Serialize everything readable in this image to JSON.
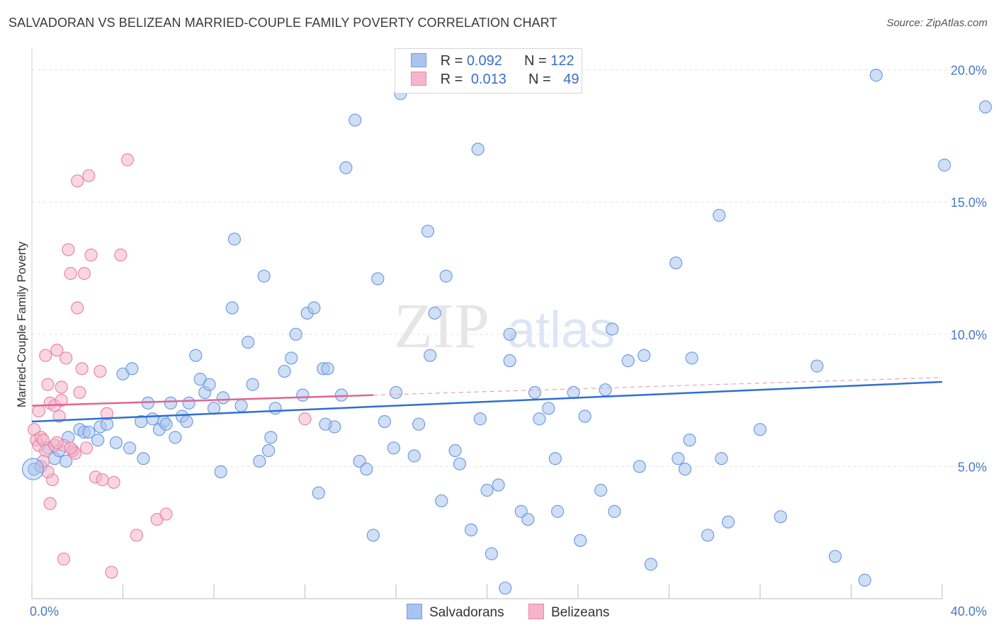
{
  "header": {
    "title": "SALVADORAN VS BELIZEAN MARRIED-COUPLE FAMILY POVERTY CORRELATION CHART",
    "source": "Source: ZipAtlas.com"
  },
  "watermark": {
    "part1": "ZIP",
    "part2": "atlas"
  },
  "legend": {
    "rows": [
      {
        "r_label": "R =",
        "r_value": "0.092",
        "n_label": "N =",
        "n_value": "122",
        "color": "#a9c4ee"
      },
      {
        "r_label": "R =",
        "r_value": "0.013",
        "n_label": "N =",
        "n_value": "49",
        "color": "#f6b5cb"
      }
    ]
  },
  "bottom_legend": {
    "items": [
      {
        "label": "Salvadorans",
        "color": "#a9c4ee"
      },
      {
        "label": "Belizeans",
        "color": "#f6b5cb"
      }
    ]
  },
  "chart_data": {
    "type": "scatter",
    "title": "SALVADORAN VS BELIZEAN MARRIED-COUPLE FAMILY POVERTY CORRELATION CHART",
    "ylabel": "Married-Couple Family Poverty",
    "xlabel": "",
    "xlim": [
      0,
      40
    ],
    "ylim": [
      0,
      20.5
    ],
    "x_tick_labels": [
      {
        "value": 0,
        "label": "0.0%"
      },
      {
        "value": 40,
        "label": "40.0%"
      }
    ],
    "y_tick_labels": [
      {
        "value": 5,
        "label": "5.0%"
      },
      {
        "value": 10,
        "label": "10.0%"
      },
      {
        "value": 15,
        "label": "15.0%"
      },
      {
        "value": 20,
        "label": "20.0%"
      }
    ],
    "grid": "horizontal dashed",
    "legend_position": "top-center",
    "series": [
      {
        "name": "Salvadorans",
        "color": "#6f9de0",
        "fill": "#a9c4ee",
        "trend": {
          "x": [
            0,
            40
          ],
          "y": [
            6.7,
            8.2
          ]
        },
        "points": [
          [
            0.1,
            4.9
          ],
          [
            0.4,
            5.0
          ],
          [
            0.7,
            5.7
          ],
          [
            1.0,
            5.3
          ],
          [
            1.2,
            5.6
          ],
          [
            1.5,
            5.2
          ],
          [
            1.6,
            6.1
          ],
          [
            1.8,
            5.6
          ],
          [
            2.1,
            6.4
          ],
          [
            2.3,
            6.3
          ],
          [
            2.5,
            6.3
          ],
          [
            2.9,
            6.0
          ],
          [
            3.0,
            6.5
          ],
          [
            3.3,
            6.6
          ],
          [
            3.7,
            5.9
          ],
          [
            4.0,
            8.5
          ],
          [
            4.3,
            5.7
          ],
          [
            4.4,
            8.7
          ],
          [
            4.8,
            6.7
          ],
          [
            4.9,
            5.3
          ],
          [
            5.1,
            7.4
          ],
          [
            5.3,
            6.8
          ],
          [
            5.6,
            6.4
          ],
          [
            5.8,
            6.7
          ],
          [
            5.9,
            6.6
          ],
          [
            6.1,
            7.4
          ],
          [
            6.3,
            6.1
          ],
          [
            6.6,
            6.9
          ],
          [
            6.8,
            6.7
          ],
          [
            6.9,
            7.4
          ],
          [
            7.2,
            9.2
          ],
          [
            7.4,
            8.3
          ],
          [
            7.6,
            7.8
          ],
          [
            7.8,
            8.1
          ],
          [
            8.0,
            7.2
          ],
          [
            8.3,
            4.8
          ],
          [
            8.4,
            7.6
          ],
          [
            8.8,
            11.0
          ],
          [
            8.9,
            13.6
          ],
          [
            9.2,
            7.3
          ],
          [
            9.5,
            9.7
          ],
          [
            9.7,
            8.1
          ],
          [
            10.0,
            5.2
          ],
          [
            10.2,
            12.2
          ],
          [
            10.4,
            5.6
          ],
          [
            10.5,
            6.1
          ],
          [
            10.7,
            7.2
          ],
          [
            11.1,
            8.6
          ],
          [
            11.4,
            9.1
          ],
          [
            11.6,
            10.0
          ],
          [
            11.9,
            7.7
          ],
          [
            12.1,
            10.8
          ],
          [
            12.4,
            11.0
          ],
          [
            12.6,
            4.0
          ],
          [
            12.8,
            8.7
          ],
          [
            13.0,
            8.7
          ],
          [
            13.3,
            6.5
          ],
          [
            13.6,
            7.7
          ],
          [
            13.8,
            16.3
          ],
          [
            14.2,
            18.1
          ],
          [
            14.4,
            5.2
          ],
          [
            14.7,
            4.9
          ],
          [
            15.0,
            2.4
          ],
          [
            15.2,
            12.1
          ],
          [
            15.5,
            6.7
          ],
          [
            15.9,
            5.7
          ],
          [
            16.0,
            7.8
          ],
          [
            16.2,
            19.1
          ],
          [
            16.8,
            5.4
          ],
          [
            17.0,
            6.6
          ],
          [
            17.4,
            13.9
          ],
          [
            17.5,
            9.2
          ],
          [
            17.7,
            10.8
          ],
          [
            18.0,
            3.7
          ],
          [
            18.2,
            12.2
          ],
          [
            18.6,
            5.6
          ],
          [
            18.8,
            5.1
          ],
          [
            19.3,
            2.6
          ],
          [
            19.7,
            6.8
          ],
          [
            20.0,
            4.1
          ],
          [
            20.2,
            1.7
          ],
          [
            20.5,
            4.3
          ],
          [
            20.8,
            0.4
          ],
          [
            21.0,
            10.0
          ],
          [
            21.0,
            9.0
          ],
          [
            21.5,
            3.3
          ],
          [
            21.8,
            3.0
          ],
          [
            22.1,
            7.8
          ],
          [
            22.3,
            6.8
          ],
          [
            22.7,
            7.2
          ],
          [
            23.0,
            5.3
          ],
          [
            23.1,
            3.3
          ],
          [
            23.8,
            7.8
          ],
          [
            24.1,
            2.2
          ],
          [
            24.3,
            6.9
          ],
          [
            25.0,
            4.1
          ],
          [
            25.2,
            7.9
          ],
          [
            25.6,
            3.3
          ],
          [
            26.2,
            9.0
          ],
          [
            26.7,
            5.0
          ],
          [
            26.9,
            9.2
          ],
          [
            27.2,
            1.3
          ],
          [
            28.3,
            12.7
          ],
          [
            28.4,
            5.3
          ],
          [
            28.7,
            4.9
          ],
          [
            28.9,
            6.0
          ],
          [
            29.0,
            9.1
          ],
          [
            29.7,
            2.4
          ],
          [
            30.2,
            14.5
          ],
          [
            30.3,
            5.3
          ],
          [
            30.6,
            2.9
          ],
          [
            32.0,
            6.4
          ],
          [
            32.9,
            3.1
          ],
          [
            34.5,
            8.8
          ],
          [
            35.3,
            1.6
          ],
          [
            36.6,
            0.7
          ],
          [
            37.1,
            19.8
          ],
          [
            40.1,
            16.4
          ],
          [
            41.9,
            18.6
          ],
          [
            19.6,
            17.0
          ],
          [
            12.9,
            6.6
          ],
          [
            25.5,
            10.2
          ]
        ]
      },
      {
        "name": "Belizeans",
        "color": "#e886a8",
        "fill": "#f6b5cb",
        "trend": {
          "x": [
            0,
            15
          ],
          "y": [
            7.3,
            7.7
          ]
        },
        "points": [
          [
            0.1,
            6.4
          ],
          [
            0.2,
            6.0
          ],
          [
            0.3,
            5.8
          ],
          [
            0.3,
            7.1
          ],
          [
            0.4,
            6.1
          ],
          [
            0.5,
            6.0
          ],
          [
            0.6,
            5.6
          ],
          [
            0.6,
            9.2
          ],
          [
            0.7,
            8.1
          ],
          [
            0.8,
            7.4
          ],
          [
            0.8,
            3.6
          ],
          [
            0.9,
            4.5
          ],
          [
            1.0,
            5.8
          ],
          [
            1.0,
            7.3
          ],
          [
            1.1,
            9.4
          ],
          [
            1.2,
            6.9
          ],
          [
            1.3,
            8.0
          ],
          [
            1.3,
            7.5
          ],
          [
            1.4,
            5.8
          ],
          [
            1.5,
            9.1
          ],
          [
            1.6,
            13.2
          ],
          [
            1.7,
            12.3
          ],
          [
            1.8,
            5.6
          ],
          [
            1.9,
            5.5
          ],
          [
            2.0,
            11.0
          ],
          [
            2.1,
            7.8
          ],
          [
            2.2,
            8.7
          ],
          [
            2.3,
            12.3
          ],
          [
            2.4,
            5.7
          ],
          [
            2.5,
            16.0
          ],
          [
            2.6,
            13.0
          ],
          [
            2.8,
            4.6
          ],
          [
            3.0,
            8.6
          ],
          [
            3.1,
            4.5
          ],
          [
            3.3,
            7.0
          ],
          [
            3.5,
            1.0
          ],
          [
            3.6,
            4.4
          ],
          [
            3.9,
            13.0
          ],
          [
            4.2,
            16.6
          ],
          [
            4.6,
            2.4
          ],
          [
            5.5,
            3.0
          ],
          [
            5.9,
            3.2
          ],
          [
            12.0,
            6.8
          ],
          [
            1.4,
            1.5
          ],
          [
            0.7,
            4.8
          ],
          [
            2.0,
            15.8
          ],
          [
            1.1,
            5.9
          ],
          [
            1.7,
            5.7
          ],
          [
            0.5,
            5.2
          ]
        ]
      }
    ]
  }
}
